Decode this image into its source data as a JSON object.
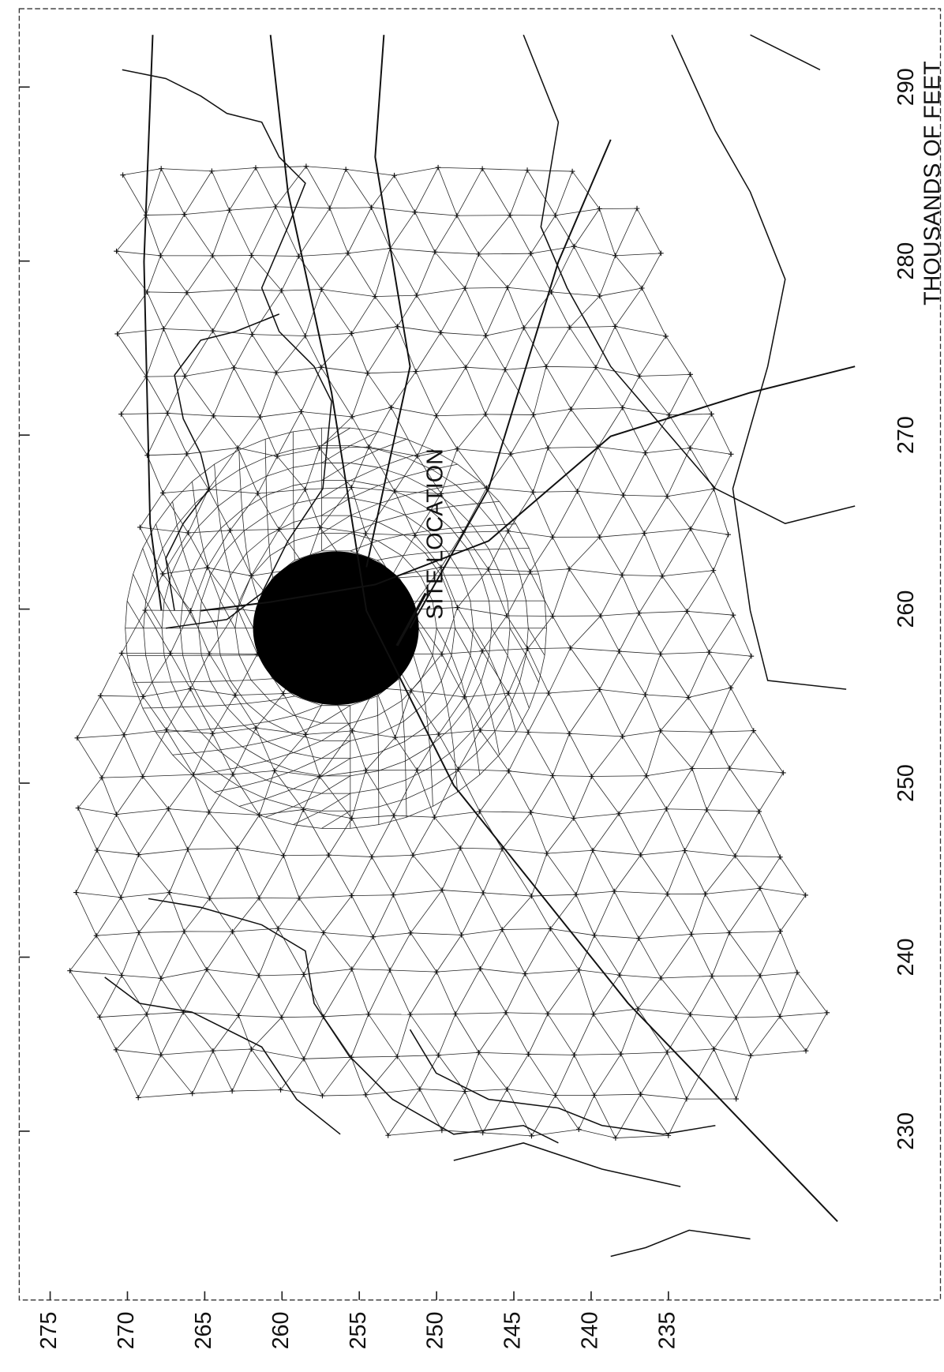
{
  "chart_data": {
    "type": "map",
    "annotation": "SITE LOCATION",
    "xlabel": "THOUSANDS OF FEET",
    "xlim": [
      220.3,
      294.5
    ],
    "xticks": [
      230,
      240,
      250,
      260,
      270,
      280,
      290
    ],
    "ylim": [
      217.4,
      277
    ],
    "yticks": [
      235,
      240,
      245,
      250,
      255,
      260,
      265,
      270,
      275
    ]
  }
}
